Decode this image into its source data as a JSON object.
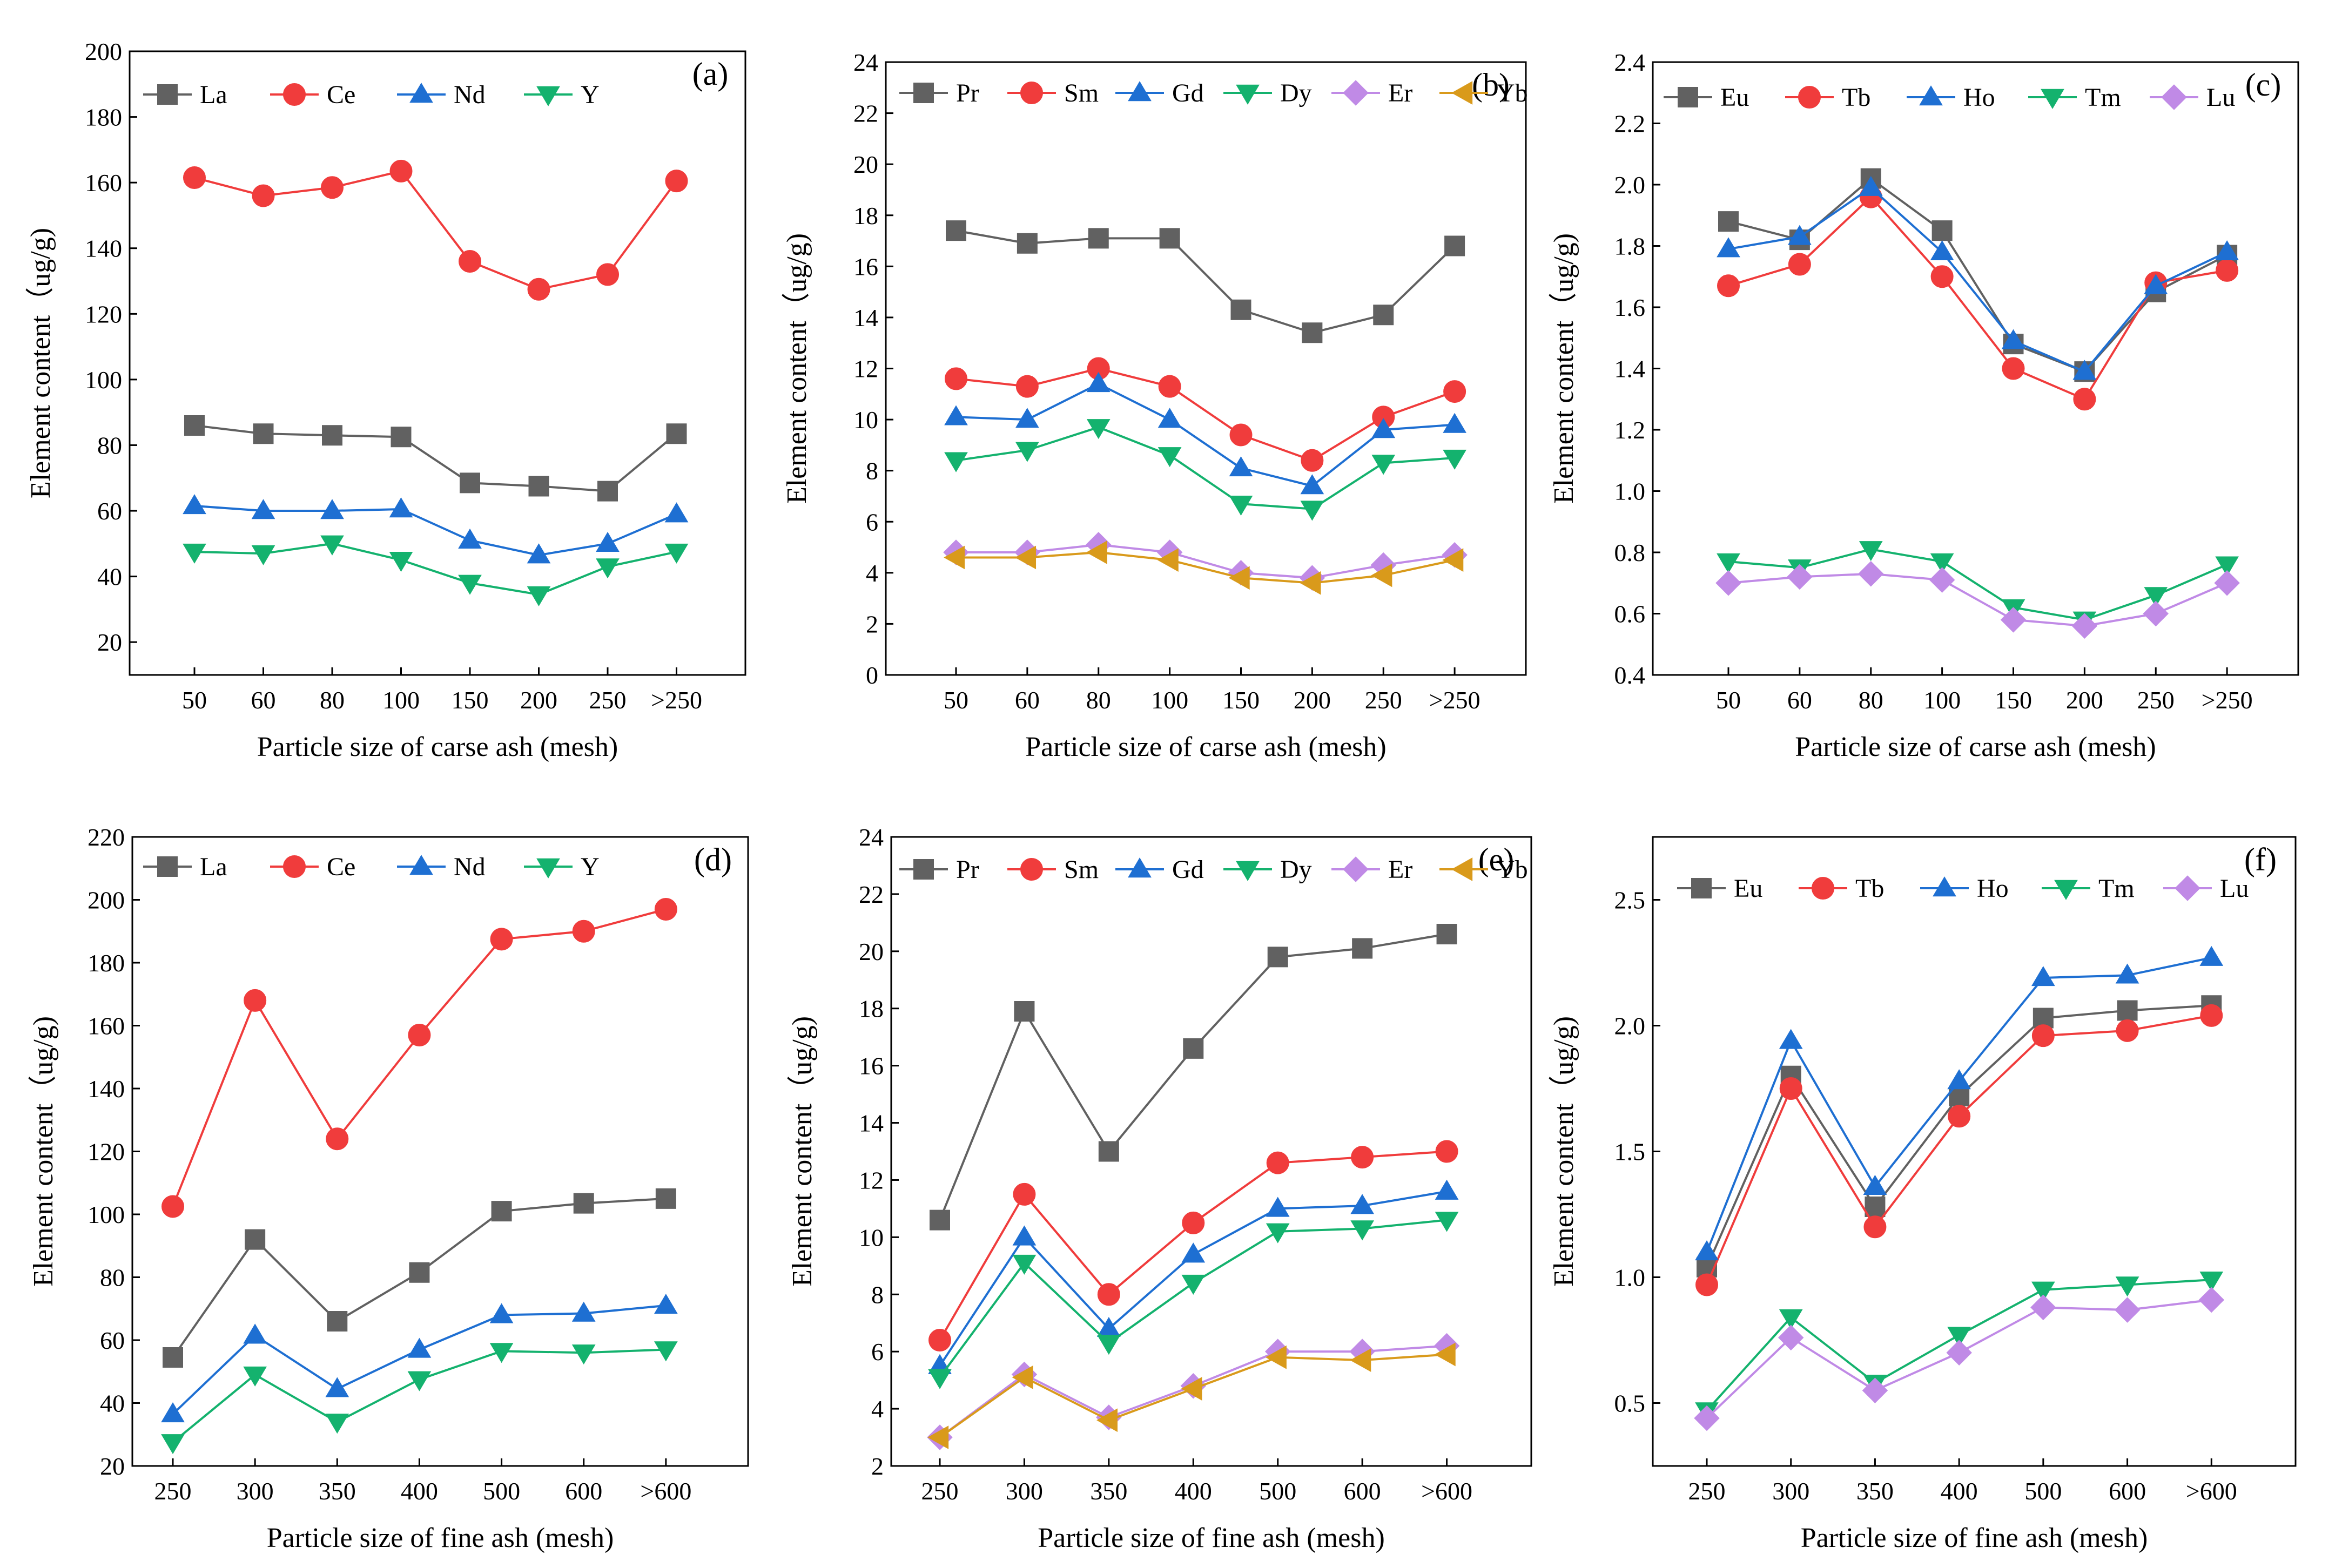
{
  "colors": {
    "La": "#616161",
    "Ce": "#f03c3c",
    "Nd": "#1e6fd2",
    "Y": "#14b26e",
    "Pr": "#616161",
    "Sm": "#f03c3c",
    "Gd": "#1e6fd2",
    "Dy": "#14b26e",
    "Er": "#c08ae6",
    "Yb": "#d99a1b",
    "Eu": "#616161",
    "Tb": "#f03c3c",
    "Ho": "#1e6fd2",
    "Tm": "#14b26e",
    "Lu": "#c08ae6"
  },
  "chart_data": [
    {
      "panel": "(a)",
      "type": "line",
      "categories": [
        "50",
        "60",
        "80",
        "100",
        "150",
        "200",
        "250",
        ">250"
      ],
      "xlabel": "Particle size of carse ash (mesh)",
      "ylabel": "Element content（ug/g)",
      "ylim": [
        10,
        200
      ],
      "yticks": [
        20,
        40,
        60,
        80,
        100,
        120,
        140,
        160,
        180,
        200
      ],
      "series": [
        {
          "name": "La",
          "marker": "square",
          "values": [
            86,
            83.5,
            83,
            82.5,
            68.5,
            67.5,
            66,
            83.5
          ]
        },
        {
          "name": "Ce",
          "marker": "circle",
          "values": [
            161.5,
            156,
            158.5,
            163.5,
            136,
            127.5,
            132,
            160.5
          ]
        },
        {
          "name": "Nd",
          "marker": "triangle-up",
          "values": [
            61.5,
            60,
            60,
            60.5,
            51,
            46.5,
            50,
            59
          ]
        },
        {
          "name": "Y",
          "marker": "triangle-down",
          "values": [
            47.5,
            47,
            50,
            45,
            38,
            34.5,
            43,
            47.5
          ]
        }
      ]
    },
    {
      "panel": "(b)",
      "type": "line",
      "categories": [
        "50",
        "60",
        "80",
        "100",
        "150",
        "200",
        "250",
        ">250"
      ],
      "xlabel": "Particle size of carse ash (mesh)",
      "ylabel": "Element content（ug/g)",
      "ylim": [
        0,
        24
      ],
      "yticks": [
        0,
        2,
        4,
        6,
        8,
        10,
        12,
        14,
        16,
        18,
        20,
        22,
        24
      ],
      "series": [
        {
          "name": "Pr",
          "marker": "square",
          "values": [
            17.4,
            16.9,
            17.1,
            17.1,
            14.3,
            13.4,
            14.1,
            16.8
          ]
        },
        {
          "name": "Sm",
          "marker": "circle",
          "values": [
            11.6,
            11.3,
            12.0,
            11.3,
            9.4,
            8.4,
            10.1,
            11.1
          ]
        },
        {
          "name": "Gd",
          "marker": "triangle-up",
          "values": [
            10.1,
            10.0,
            11.4,
            10.0,
            8.1,
            7.4,
            9.6,
            9.8
          ]
        },
        {
          "name": "Dy",
          "marker": "triangle-down",
          "values": [
            8.4,
            8.8,
            9.7,
            8.6,
            6.7,
            6.5,
            8.3,
            8.5
          ]
        },
        {
          "name": "Er",
          "marker": "diamond",
          "values": [
            4.8,
            4.8,
            5.1,
            4.8,
            4.0,
            3.8,
            4.3,
            4.7
          ]
        },
        {
          "name": "Yb",
          "marker": "triangle-left",
          "values": [
            4.6,
            4.6,
            4.8,
            4.5,
            3.8,
            3.6,
            3.9,
            4.5
          ]
        }
      ]
    },
    {
      "panel": "(c)",
      "type": "line",
      "categories": [
        "50",
        "60",
        "80",
        "100",
        "150",
        "200",
        "250",
        ">250"
      ],
      "xlabel": "Particle size of carse ash (mesh)",
      "ylabel": "Element content（ug/g)",
      "ylim": [
        0.4,
        2.4
      ],
      "yticks": [
        0.4,
        0.6,
        0.8,
        1.0,
        1.2,
        1.4,
        1.6,
        1.8,
        2.0,
        2.2,
        2.4
      ],
      "series": [
        {
          "name": "Eu",
          "marker": "square",
          "values": [
            1.88,
            1.82,
            2.02,
            1.85,
            1.48,
            1.39,
            1.65,
            1.77
          ]
        },
        {
          "name": "Tb",
          "marker": "circle",
          "values": [
            1.67,
            1.74,
            1.96,
            1.7,
            1.4,
            1.3,
            1.68,
            1.72
          ]
        },
        {
          "name": "Ho",
          "marker": "triangle-up",
          "values": [
            1.79,
            1.83,
            1.99,
            1.78,
            1.49,
            1.39,
            1.67,
            1.78
          ]
        },
        {
          "name": "Tm",
          "marker": "triangle-down",
          "values": [
            0.77,
            0.75,
            0.81,
            0.77,
            0.62,
            0.58,
            0.66,
            0.76
          ]
        },
        {
          "name": "Lu",
          "marker": "diamond",
          "values": [
            0.7,
            0.72,
            0.73,
            0.71,
            0.58,
            0.56,
            0.6,
            0.7
          ]
        }
      ]
    },
    {
      "panel": "(d)",
      "type": "line",
      "categories": [
        "250",
        "300",
        "350",
        "400",
        "500",
        "600",
        ">600"
      ],
      "xlabel": "Particle size of fine ash (mesh)",
      "ylabel": "Element content（ug/g)",
      "ylim": [
        20,
        220
      ],
      "yticks": [
        20,
        40,
        60,
        80,
        100,
        120,
        140,
        160,
        180,
        200,
        220
      ],
      "series": [
        {
          "name": "La",
          "marker": "square",
          "values": [
            54.5,
            92,
            66,
            81.5,
            101,
            103.5,
            105
          ]
        },
        {
          "name": "Ce",
          "marker": "circle",
          "values": [
            102.5,
            168,
            124,
            157,
            187.5,
            190,
            197
          ]
        },
        {
          "name": "Nd",
          "marker": "triangle-up",
          "values": [
            36.5,
            61.5,
            44.5,
            57,
            68,
            68.5,
            71
          ]
        },
        {
          "name": "Y",
          "marker": "triangle-down",
          "values": [
            27.5,
            49,
            34,
            47.5,
            56.5,
            56,
            57
          ]
        }
      ]
    },
    {
      "panel": "(e)",
      "type": "line",
      "categories": [
        "250",
        "300",
        "350",
        "400",
        "500",
        "600",
        ">600"
      ],
      "xlabel": "Particle size of fine ash (mesh)",
      "ylabel": "Element content（ug/g)",
      "ylim": [
        2,
        24
      ],
      "yticks": [
        2,
        4,
        6,
        8,
        10,
        12,
        14,
        16,
        18,
        20,
        22,
        24
      ],
      "series": [
        {
          "name": "Pr",
          "marker": "square",
          "values": [
            10.6,
            17.9,
            13.0,
            16.6,
            19.8,
            20.1,
            20.6
          ]
        },
        {
          "name": "Sm",
          "marker": "circle",
          "values": [
            6.4,
            11.5,
            8.0,
            10.5,
            12.6,
            12.8,
            13.0
          ]
        },
        {
          "name": "Gd",
          "marker": "triangle-up",
          "values": [
            5.5,
            10.0,
            6.8,
            9.4,
            11.0,
            11.1,
            11.6
          ]
        },
        {
          "name": "Dy",
          "marker": "triangle-down",
          "values": [
            5.1,
            9.1,
            6.3,
            8.4,
            10.2,
            10.3,
            10.6
          ]
        },
        {
          "name": "Er",
          "marker": "diamond",
          "values": [
            3.0,
            5.2,
            3.7,
            4.8,
            6.0,
            6.0,
            6.2
          ]
        },
        {
          "name": "Yb",
          "marker": "triangle-left",
          "values": [
            3.0,
            5.1,
            3.6,
            4.7,
            5.8,
            5.7,
            5.9
          ]
        }
      ]
    },
    {
      "panel": "(f)",
      "type": "line",
      "categories": [
        "250",
        "300",
        "350",
        "400",
        "500",
        "600",
        ">600"
      ],
      "xlabel": "Particle size of fine ash (mesh)",
      "ylabel": "Element content（ug/g)",
      "ylim": [
        0.25,
        2.75
      ],
      "yticks": [
        0.5,
        1.0,
        1.5,
        2.0,
        2.5
      ],
      "series": [
        {
          "name": "Eu",
          "marker": "square",
          "values": [
            1.04,
            1.8,
            1.28,
            1.72,
            2.03,
            2.06,
            2.08
          ]
        },
        {
          "name": "Tb",
          "marker": "circle",
          "values": [
            0.97,
            1.75,
            1.2,
            1.64,
            1.96,
            1.98,
            2.04
          ]
        },
        {
          "name": "Ho",
          "marker": "triangle-up",
          "values": [
            1.1,
            1.94,
            1.36,
            1.78,
            2.19,
            2.2,
            2.27
          ]
        },
        {
          "name": "Tm",
          "marker": "triangle-down",
          "values": [
            0.47,
            0.84,
            0.58,
            0.77,
            0.95,
            0.97,
            0.99
          ]
        },
        {
          "name": "Lu",
          "marker": "diamond",
          "values": [
            0.44,
            0.76,
            0.55,
            0.7,
            0.88,
            0.87,
            0.91
          ]
        }
      ]
    }
  ]
}
